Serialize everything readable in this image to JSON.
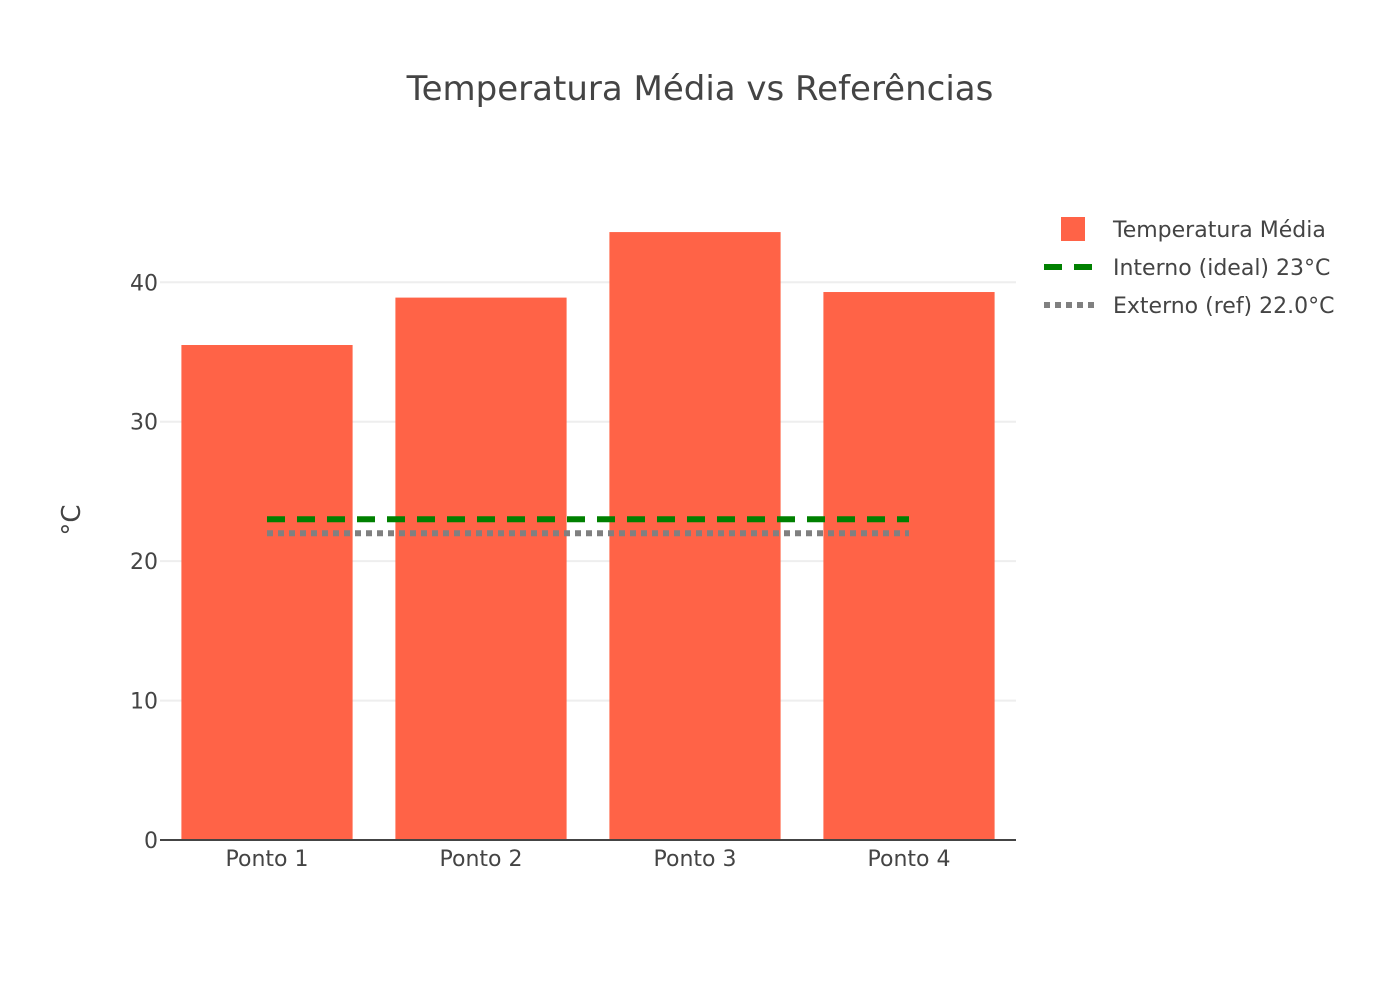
{
  "chart_data": {
    "type": "bar",
    "title": "Temperatura Média vs Referências",
    "xlabel": "",
    "ylabel": "°C",
    "categories": [
      "Ponto 1",
      "Ponto 2",
      "Ponto 3",
      "Ponto 4"
    ],
    "ylim": [
      0,
      45.9
    ],
    "yticks": [
      0,
      10,
      20,
      30,
      40
    ],
    "grid": true,
    "legend_position": "top-right",
    "series": [
      {
        "name": "Temperatura Média",
        "kind": "bar",
        "color": "#FF6347",
        "values": [
          35.5,
          38.9,
          43.6,
          39.3
        ]
      },
      {
        "name": "Interno (ideal) 23°C",
        "kind": "line",
        "dash": "dash",
        "color": "#008000",
        "values": [
          23,
          23,
          23,
          23
        ]
      },
      {
        "name": "Externo (ref) 22.0°C",
        "kind": "line",
        "dash": "dot",
        "color": "#808080",
        "values": [
          22.0,
          22.0,
          22.0,
          22.0
        ]
      }
    ]
  }
}
